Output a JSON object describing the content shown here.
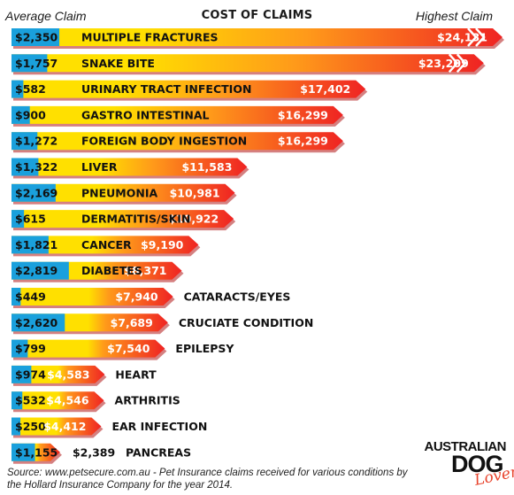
{
  "header": {
    "left_label": "Average Claim",
    "title": "COST OF CLAIMS",
    "right_label": "Highest Claim"
  },
  "source_note": "Source: www.petsecure.com.au - Pet Insurance claims received for various conditions by the Hollard Insurance Company for the year 2014.",
  "logo": {
    "line1": "AUSTRALIAN",
    "line2": "DOG",
    "line3": "Lover"
  },
  "colors": {
    "average_bar": "#1aa0dc",
    "gradient_start": "#ffe000",
    "gradient_mid": "#ff9a1a",
    "gradient_end": "#ef2323",
    "arrow_shadow": "#b31818"
  },
  "chart_data": {
    "type": "bar",
    "orientation": "horizontal",
    "title": "COST OF CLAIMS",
    "series": [
      {
        "name": "Average Claim",
        "values": [
          2350,
          1757,
          582,
          900,
          1272,
          1322,
          2169,
          615,
          1821,
          2819,
          449,
          2620,
          799,
          974,
          532,
          250,
          1155
        ]
      },
      {
        "name": "Highest Claim",
        "values": [
          24131,
          23209,
          17402,
          16299,
          16299,
          11583,
          10981,
          10922,
          9190,
          8371,
          7940,
          7689,
          7540,
          4583,
          4546,
          4412,
          2389
        ]
      }
    ],
    "categories": [
      "MULTIPLE FRACTURES",
      "SNAKE BITE",
      "URINARY TRACT INFECTION",
      "GASTRO INTESTINAL",
      "FOREIGN BODY INGESTION",
      "LIVER",
      "PNEUMONIA",
      "DERMATITIS/SKIN",
      "CANCER",
      "DIABETES",
      "CATARACTS/EYES",
      "CRUCIATE CONDITION",
      "EPILEPSY",
      "HEART",
      "ARTHRITIS",
      "EAR INFECTION",
      "PANCREAS"
    ],
    "average_labels": [
      "$2,350",
      "$1,757",
      "$582",
      "$900",
      "$1,272",
      "$1,322",
      "$2,169",
      "$615",
      "$1,821",
      "$2,819",
      "$449",
      "$2,620",
      "$799",
      "$974",
      "$532",
      "$250",
      "$1,155"
    ],
    "highest_labels": [
      "$24,131",
      "$23,209",
      "$17,402",
      "$16,299",
      "$16,299",
      "$11,583",
      "$10,981",
      "$10,922",
      "$9,190",
      "$8,371",
      "$7,940",
      "$7,689",
      "$7,540",
      "$4,583",
      "$4,546",
      "$4,412",
      "$2,389"
    ],
    "legend": [
      "Average Claim",
      "Highest Claim"
    ],
    "legend_position": "top",
    "grid": false
  }
}
